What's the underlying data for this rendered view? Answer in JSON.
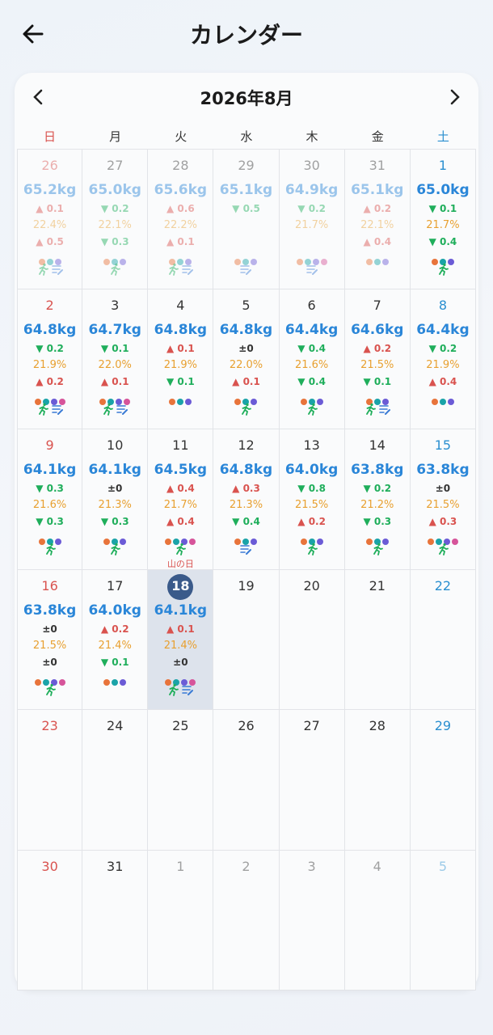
{
  "header": {
    "title": "カレンダー"
  },
  "calendar": {
    "month": "2026年8月",
    "weekdays": [
      "日",
      "月",
      "火",
      "水",
      "木",
      "金",
      "土"
    ],
    "days": [
      {
        "day": "26",
        "other": true,
        "weight": "65.2kg",
        "wchange": "▲ 0.1",
        "fat": "22.4%",
        "fchange": "▲ 0.5",
        "dots": [
          "#e8743b",
          "#1aa3a8",
          "#6b5bd6"
        ],
        "icons": [
          "run",
          "memo"
        ]
      },
      {
        "day": "27",
        "other": true,
        "weight": "65.0kg",
        "wchange": "▼ 0.2",
        "fat": "22.1%",
        "fchange": "▼ 0.3",
        "dots": [
          "#e8743b",
          "#1aa3a8",
          "#6b5bd6"
        ],
        "icons": [
          "run"
        ]
      },
      {
        "day": "28",
        "other": true,
        "weight": "65.6kg",
        "wchange": "▲ 0.6",
        "fat": "22.2%",
        "fchange": "▲ 0.1",
        "dots": [
          "#e8743b",
          "#1aa3a8",
          "#6b5bd6"
        ],
        "icons": [
          "run",
          "memo"
        ]
      },
      {
        "day": "29",
        "other": true,
        "weight": "65.1kg",
        "wchange": "▼ 0.5",
        "dots": [
          "#e8743b",
          "#1aa3a8",
          "#6b5bd6"
        ],
        "icons": [
          "memo"
        ]
      },
      {
        "day": "30",
        "other": true,
        "weight": "64.9kg",
        "wchange": "▼ 0.2",
        "fat": "21.7%",
        "dots": [
          "#e8743b",
          "#1aa3a8",
          "#6b5bd6",
          "#d6549a"
        ],
        "icons": [
          "memo"
        ]
      },
      {
        "day": "31",
        "other": true,
        "weight": "65.1kg",
        "wchange": "▲ 0.2",
        "fat": "22.1%",
        "fchange": "▲ 0.4",
        "dots": [
          "#e8743b",
          "#1aa3a8",
          "#6b5bd6"
        ],
        "icons": []
      },
      {
        "day": "1",
        "weight": "65.0kg",
        "wchange": "▼ 0.1",
        "fat": "21.7%",
        "fchange": "▼ 0.4",
        "dots": [
          "#e8743b",
          "#1aa3a8",
          "#6b5bd6"
        ],
        "icons": [
          "run"
        ]
      },
      {
        "day": "2",
        "weight": "64.8kg",
        "wchange": "▼ 0.2",
        "fat": "21.9%",
        "fchange": "▲ 0.2",
        "dots": [
          "#e8743b",
          "#1aa3a8",
          "#6b5bd6",
          "#d6549a"
        ],
        "icons": [
          "run",
          "memo"
        ]
      },
      {
        "day": "3",
        "weight": "64.7kg",
        "wchange": "▼ 0.1",
        "fat": "22.0%",
        "fchange": "▲ 0.1",
        "dots": [
          "#e8743b",
          "#1aa3a8",
          "#6b5bd6",
          "#d6549a"
        ],
        "icons": [
          "run",
          "memo"
        ]
      },
      {
        "day": "4",
        "weight": "64.8kg",
        "wchange": "▲ 0.1",
        "fat": "21.9%",
        "fchange": "▼ 0.1",
        "dots": [
          "#e8743b",
          "#1aa3a8",
          "#6b5bd6"
        ],
        "icons": []
      },
      {
        "day": "5",
        "weight": "64.8kg",
        "wchange": "±0",
        "fat": "22.0%",
        "fchange": "▲ 0.1",
        "dots": [
          "#e8743b",
          "#1aa3a8",
          "#6b5bd6"
        ],
        "icons": [
          "run"
        ]
      },
      {
        "day": "6",
        "weight": "64.4kg",
        "wchange": "▼ 0.4",
        "fat": "21.6%",
        "fchange": "▼ 0.4",
        "dots": [
          "#e8743b",
          "#1aa3a8",
          "#6b5bd6"
        ],
        "icons": [
          "run"
        ]
      },
      {
        "day": "7",
        "weight": "64.6kg",
        "wchange": "▲ 0.2",
        "fat": "21.5%",
        "fchange": "▼ 0.1",
        "dots": [
          "#e8743b",
          "#1aa3a8",
          "#6b5bd6"
        ],
        "icons": [
          "run",
          "memo"
        ]
      },
      {
        "day": "8",
        "weight": "64.4kg",
        "wchange": "▼ 0.2",
        "fat": "21.9%",
        "fchange": "▲ 0.4",
        "dots": [
          "#e8743b",
          "#1aa3a8",
          "#6b5bd6"
        ],
        "icons": []
      },
      {
        "day": "9",
        "weight": "64.1kg",
        "wchange": "▼ 0.3",
        "fat": "21.6%",
        "fchange": "▼ 0.3",
        "dots": [
          "#e8743b",
          "#1aa3a8",
          "#6b5bd6"
        ],
        "icons": [
          "run"
        ]
      },
      {
        "day": "10",
        "weight": "64.1kg",
        "wchange": "±0",
        "fat": "21.3%",
        "fchange": "▼ 0.3",
        "dots": [
          "#e8743b",
          "#1aa3a8",
          "#6b5bd6"
        ],
        "icons": [
          "run"
        ]
      },
      {
        "day": "11",
        "weight": "64.5kg",
        "wchange": "▲ 0.4",
        "fat": "21.7%",
        "fchange": "▲ 0.4",
        "dots": [
          "#e8743b",
          "#1aa3a8",
          "#6b5bd6",
          "#d6549a"
        ],
        "icons": [
          "run"
        ],
        "holiday": "山の日"
      },
      {
        "day": "12",
        "weight": "64.8kg",
        "wchange": "▲ 0.3",
        "fat": "21.3%",
        "fchange": "▼ 0.4",
        "dots": [
          "#e8743b",
          "#1aa3a8",
          "#6b5bd6"
        ],
        "icons": [
          "memo"
        ]
      },
      {
        "day": "13",
        "weight": "64.0kg",
        "wchange": "▼ 0.8",
        "fat": "21.5%",
        "fchange": "▲ 0.2",
        "dots": [
          "#e8743b",
          "#1aa3a8",
          "#6b5bd6"
        ],
        "icons": [
          "run"
        ]
      },
      {
        "day": "14",
        "weight": "63.8kg",
        "wchange": "▼ 0.2",
        "fat": "21.2%",
        "fchange": "▼ 0.3",
        "dots": [
          "#e8743b",
          "#1aa3a8",
          "#6b5bd6"
        ],
        "icons": [
          "run"
        ]
      },
      {
        "day": "15",
        "weight": "63.8kg",
        "wchange": "±0",
        "fat": "21.5%",
        "fchange": "▲ 0.3",
        "dots": [
          "#e8743b",
          "#1aa3a8",
          "#6b5bd6",
          "#d6549a"
        ],
        "icons": [
          "run"
        ]
      },
      {
        "day": "16",
        "weight": "63.8kg",
        "wchange": "±0",
        "fat": "21.5%",
        "fchange": "±0",
        "dots": [
          "#e8743b",
          "#1aa3a8",
          "#6b5bd6",
          "#d6549a"
        ],
        "icons": [
          "run"
        ]
      },
      {
        "day": "17",
        "weight": "64.0kg",
        "wchange": "▲ 0.2",
        "fat": "21.4%",
        "fchange": "▼ 0.1",
        "dots": [
          "#e8743b",
          "#1aa3a8",
          "#6b5bd6"
        ],
        "icons": []
      },
      {
        "day": "18",
        "today": true,
        "weight": "64.1kg",
        "wchange": "▲ 0.1",
        "fat": "21.4%",
        "fchange": "±0",
        "dots": [
          "#e8743b",
          "#1aa3a8",
          "#6b5bd6",
          "#d6549a"
        ],
        "icons": [
          "run",
          "memo"
        ]
      },
      {
        "day": "19"
      },
      {
        "day": "20"
      },
      {
        "day": "21"
      },
      {
        "day": "22"
      },
      {
        "day": "23"
      },
      {
        "day": "24"
      },
      {
        "day": "25"
      },
      {
        "day": "26"
      },
      {
        "day": "27"
      },
      {
        "day": "28"
      },
      {
        "day": "29"
      },
      {
        "day": "30"
      },
      {
        "day": "31"
      },
      {
        "day": "1",
        "other": true
      },
      {
        "day": "2",
        "other": true
      },
      {
        "day": "3",
        "other": true
      },
      {
        "day": "4",
        "other": true
      },
      {
        "day": "5",
        "other": true
      }
    ]
  }
}
